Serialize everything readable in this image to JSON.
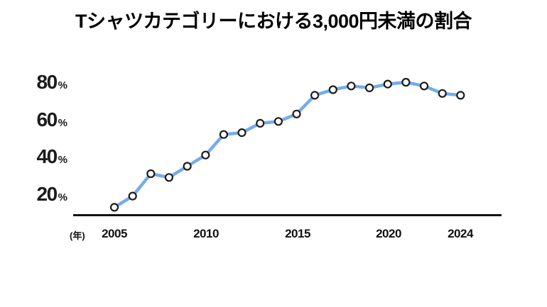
{
  "title": "Tシャツカテゴリーにおける3,000円未満の割合",
  "chart_data": {
    "type": "line",
    "x": [
      2005,
      2006,
      2007,
      2008,
      2009,
      2010,
      2011,
      2012,
      2013,
      2014,
      2015,
      2016,
      2017,
      2018,
      2019,
      2020,
      2021,
      2022,
      2023,
      2024
    ],
    "values": [
      13,
      19,
      31,
      29,
      35,
      41,
      52,
      53,
      58,
      59,
      63,
      73,
      76,
      78,
      77,
      79,
      80,
      78,
      74,
      73
    ],
    "title": "Tシャツカテゴリーにおける3,000円未満の割合",
    "xlabel": "(年)",
    "ylabel": "",
    "ylim": [
      9,
      85
    ],
    "grid": false,
    "legend": "none",
    "ytick_labels": [
      {
        "num": "80",
        "suffix": "%"
      },
      {
        "num": "60",
        "suffix": "%"
      },
      {
        "num": "40",
        "suffix": "%"
      },
      {
        "num": "20",
        "suffix": "%"
      }
    ],
    "ytick_values": [
      80,
      60,
      40,
      20
    ],
    "xtick_labels": [
      "2005",
      "2010",
      "2015",
      "2020",
      "2024"
    ],
    "xtick_values": [
      2005,
      2010,
      2015,
      2020,
      2024
    ],
    "line_color": "#74ACEB",
    "marker_fill": "#FFFFFF",
    "marker_stroke": "#1B1B1B",
    "axis_color": "#111111"
  }
}
